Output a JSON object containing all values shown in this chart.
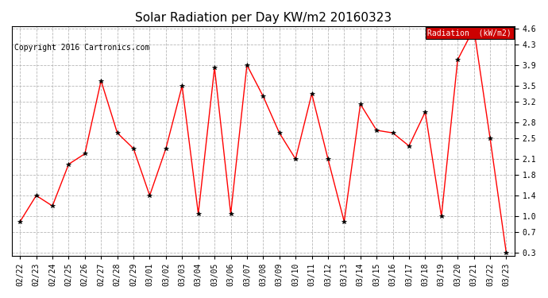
{
  "title": "Solar Radiation per Day KW/m2 20160323",
  "copyright": "Copyright 2016 Cartronics.com",
  "legend_label": "Radiation  (kW/m2)",
  "dates": [
    "02/22",
    "02/23",
    "02/24",
    "02/25",
    "02/26",
    "02/27",
    "02/28",
    "02/29",
    "03/01",
    "03/02",
    "03/03",
    "03/04",
    "03/05",
    "03/06",
    "03/07",
    "03/08",
    "03/09",
    "03/10",
    "03/11",
    "03/12",
    "03/13",
    "03/14",
    "03/15",
    "03/16",
    "03/17",
    "03/18",
    "03/19",
    "03/20",
    "03/21",
    "03/22",
    "03/23"
  ],
  "values": [
    0.9,
    1.4,
    1.2,
    2.0,
    2.2,
    3.6,
    2.6,
    2.3,
    1.4,
    2.3,
    3.5,
    1.05,
    3.85,
    1.05,
    3.9,
    3.3,
    2.6,
    2.1,
    3.35,
    2.1,
    0.9,
    3.15,
    2.65,
    2.6,
    2.35,
    3.0,
    1.0,
    4.0,
    4.6,
    2.5,
    0.3
  ],
  "ylim_min": 0.25,
  "ylim_max": 4.65,
  "yticks": [
    0.3,
    0.7,
    1.0,
    1.4,
    1.8,
    2.1,
    2.5,
    2.8,
    3.2,
    3.5,
    3.9,
    4.3,
    4.6
  ],
  "line_color": "red",
  "marker": "*",
  "marker_color": "black",
  "marker_size": 4,
  "background_color": "#ffffff",
  "grid_color": "#b0b0b0",
  "title_fontsize": 11,
  "tick_fontsize": 7,
  "copyright_fontsize": 7,
  "legend_bg": "#cc0000",
  "legend_text_color": "white",
  "legend_fontsize": 7
}
